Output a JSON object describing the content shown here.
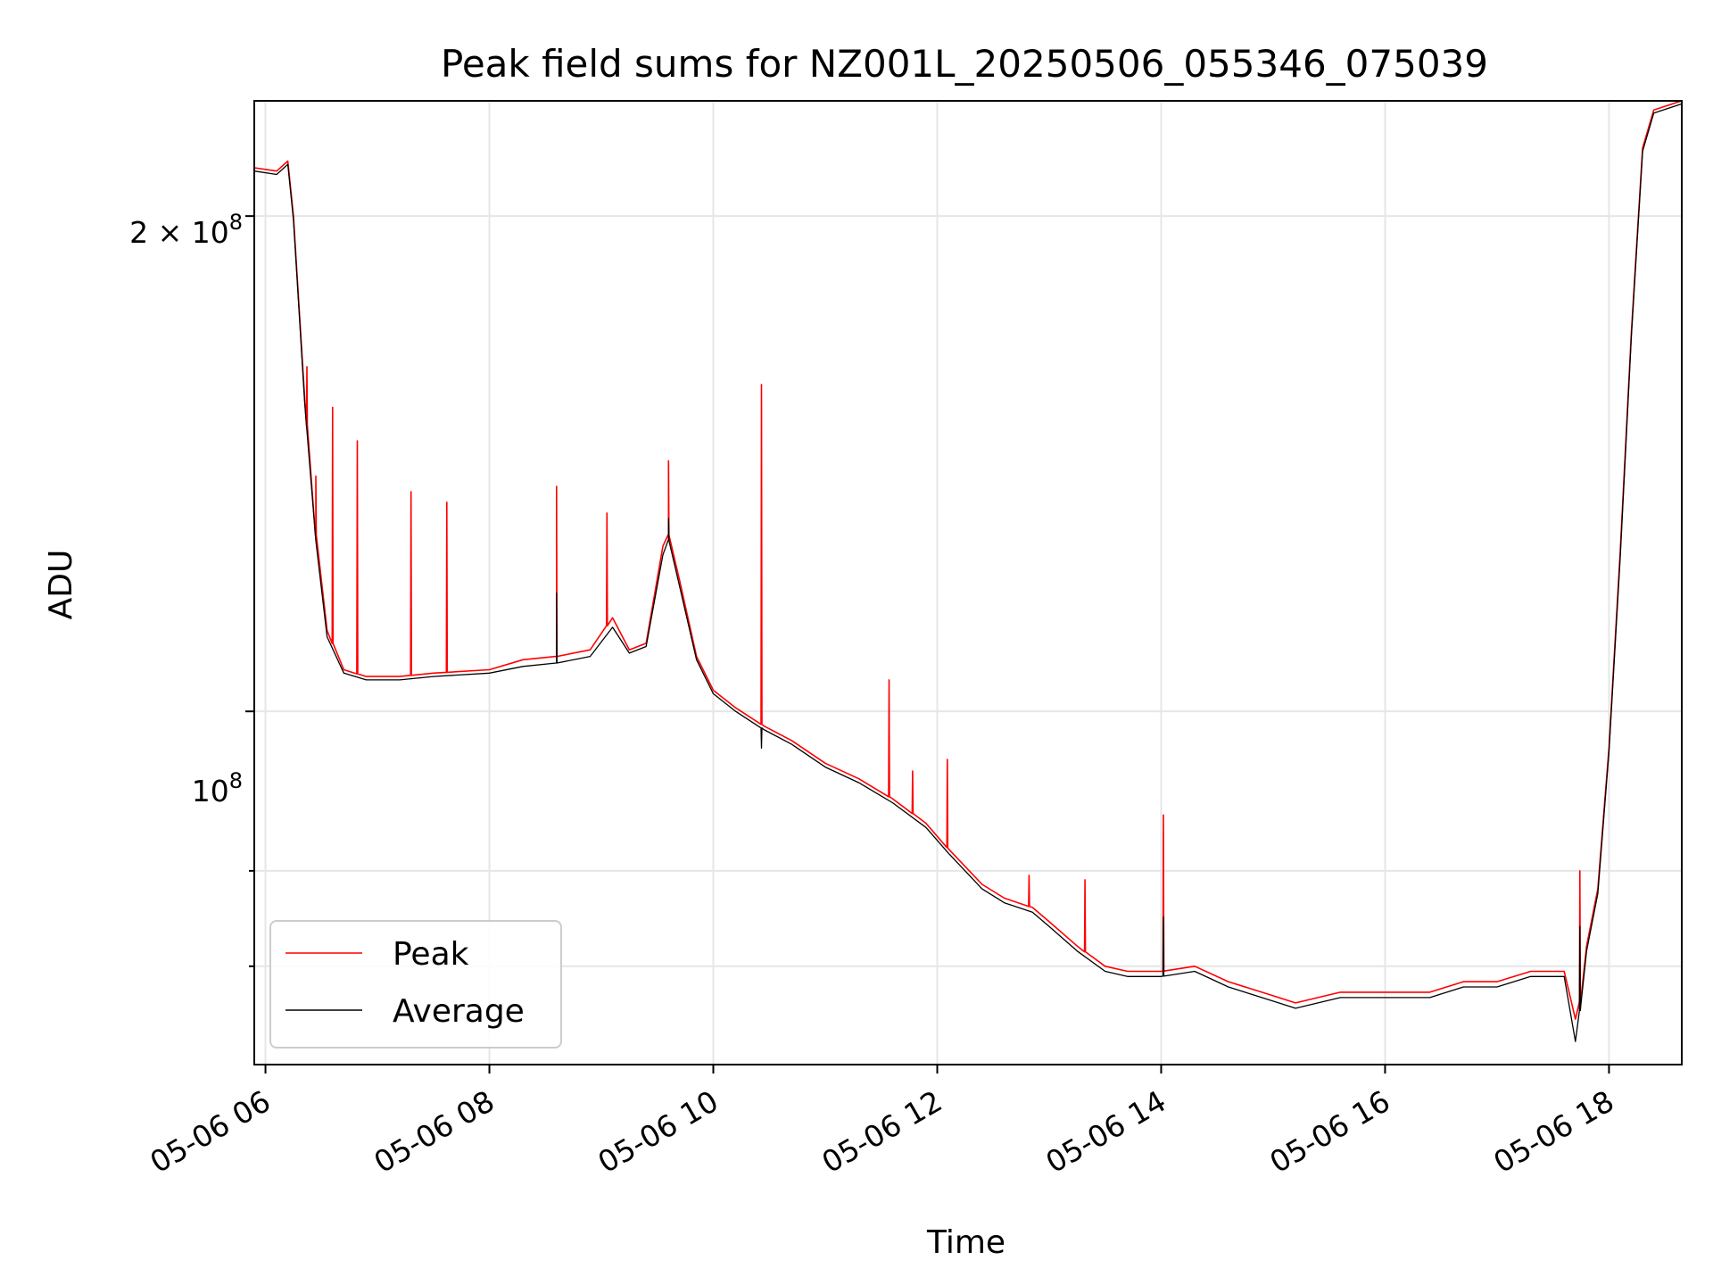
{
  "chart_data": {
    "type": "line",
    "title": "Peak field sums for NZ001L_20250506_055346_075039",
    "xlabel": "Time",
    "ylabel": "ADU",
    "yscale": "log",
    "grid": true,
    "legend_position": "lower-left",
    "x_tick_labels": [
      "05-06 06",
      "05-06 08",
      "05-06 10",
      "05-06 12",
      "05-06 14",
      "05-06 16",
      "05-06 18"
    ],
    "y_tick_labels": {
      "y_2e8": {
        "base": "2 × 10",
        "exp": "8"
      },
      "y_1e8": {
        "base": "10",
        "exp": "8"
      }
    },
    "xlim_hours": [
      5.9,
      18.65
    ],
    "ylim": [
      61000000,
      235000000
    ],
    "series": [
      {
        "name": "Peak",
        "color": "#ff0000",
        "points": [
          [
            5.9,
            214000000
          ],
          [
            6.1,
            213000000
          ],
          [
            6.2,
            216000000
          ],
          [
            6.25,
            200000000
          ],
          [
            6.35,
            155000000
          ],
          [
            6.45,
            128000000
          ],
          [
            6.55,
            112000000
          ],
          [
            6.7,
            106000000
          ],
          [
            6.9,
            105000000
          ],
          [
            7.2,
            105000000
          ],
          [
            7.5,
            105500000
          ],
          [
            8.0,
            106000000
          ],
          [
            8.3,
            107500000
          ],
          [
            8.6,
            108000000
          ],
          [
            8.9,
            109000000
          ],
          [
            9.1,
            114000000
          ],
          [
            9.25,
            109000000
          ],
          [
            9.4,
            110000000
          ],
          [
            9.55,
            126000000
          ],
          [
            9.6,
            128000000
          ],
          [
            9.7,
            120000000
          ],
          [
            9.85,
            108000000
          ],
          [
            10.0,
            103000000
          ],
          [
            10.2,
            100500000
          ],
          [
            10.45,
            98000000
          ],
          [
            10.7,
            96000000
          ],
          [
            11.0,
            93000000
          ],
          [
            11.3,
            91000000
          ],
          [
            11.6,
            88500000
          ],
          [
            11.9,
            85500000
          ],
          [
            12.1,
            82500000
          ],
          [
            12.4,
            78500000
          ],
          [
            12.6,
            77000000
          ],
          [
            12.85,
            76000000
          ],
          [
            13.0,
            74500000
          ],
          [
            13.25,
            72000000
          ],
          [
            13.5,
            70000000
          ],
          [
            13.7,
            69500000
          ],
          [
            14.0,
            69500000
          ],
          [
            14.3,
            70000000
          ],
          [
            14.6,
            68500000
          ],
          [
            14.9,
            67500000
          ],
          [
            15.2,
            66500000
          ],
          [
            15.6,
            67500000
          ],
          [
            16.0,
            67500000
          ],
          [
            16.4,
            67500000
          ],
          [
            16.7,
            68500000
          ],
          [
            17.0,
            68500000
          ],
          [
            17.3,
            69500000
          ],
          [
            17.6,
            69500000
          ],
          [
            17.7,
            65000000
          ],
          [
            17.75,
            67000000
          ],
          [
            17.8,
            72000000
          ],
          [
            17.9,
            78000000
          ],
          [
            18.0,
            95000000
          ],
          [
            18.1,
            125000000
          ],
          [
            18.2,
            170000000
          ],
          [
            18.3,
            220000000
          ],
          [
            18.4,
            232000000
          ],
          [
            18.65,
            235000000
          ]
        ],
        "spikes": [
          [
            6.37,
            162000000
          ],
          [
            6.45,
            139000000
          ],
          [
            6.6,
            153000000
          ],
          [
            6.82,
            146000000
          ],
          [
            7.3,
            136000000
          ],
          [
            7.62,
            134000000
          ],
          [
            8.6,
            137000000
          ],
          [
            9.05,
            132000000
          ],
          [
            9.6,
            142000000
          ],
          [
            10.43,
            158000000
          ],
          [
            11.57,
            104500000
          ],
          [
            11.78,
            92000000
          ],
          [
            12.09,
            93500000
          ],
          [
            12.82,
            79500000
          ],
          [
            13.32,
            79000000
          ],
          [
            14.02,
            86500000
          ],
          [
            17.74,
            80000000
          ]
        ]
      },
      {
        "name": "Average",
        "color": "#000000",
        "points": [
          [
            5.9,
            213000000
          ],
          [
            6.1,
            212000000
          ],
          [
            6.2,
            215000000
          ],
          [
            6.25,
            199000000
          ],
          [
            6.35,
            154000000
          ],
          [
            6.45,
            127000000
          ],
          [
            6.55,
            111000000
          ],
          [
            6.7,
            105500000
          ],
          [
            6.9,
            104500000
          ],
          [
            7.2,
            104500000
          ],
          [
            7.5,
            105000000
          ],
          [
            8.0,
            105500000
          ],
          [
            8.3,
            106500000
          ],
          [
            8.6,
            107000000
          ],
          [
            8.9,
            108000000
          ],
          [
            9.1,
            112500000
          ],
          [
            9.25,
            108500000
          ],
          [
            9.4,
            109500000
          ],
          [
            9.55,
            124500000
          ],
          [
            9.6,
            127000000
          ],
          [
            9.7,
            119000000
          ],
          [
            9.85,
            107500000
          ],
          [
            10.0,
            102500000
          ],
          [
            10.2,
            100000000
          ],
          [
            10.45,
            97500000
          ],
          [
            10.7,
            95500000
          ],
          [
            11.0,
            92500000
          ],
          [
            11.3,
            90500000
          ],
          [
            11.6,
            88000000
          ],
          [
            11.9,
            85000000
          ],
          [
            12.1,
            82000000
          ],
          [
            12.4,
            78000000
          ],
          [
            12.6,
            76500000
          ],
          [
            12.85,
            75500000
          ],
          [
            13.0,
            74000000
          ],
          [
            13.25,
            71500000
          ],
          [
            13.5,
            69500000
          ],
          [
            13.7,
            69000000
          ],
          [
            14.0,
            69000000
          ],
          [
            14.3,
            69500000
          ],
          [
            14.6,
            68000000
          ],
          [
            14.9,
            67000000
          ],
          [
            15.2,
            66000000
          ],
          [
            15.6,
            67000000
          ],
          [
            16.0,
            67000000
          ],
          [
            16.4,
            67000000
          ],
          [
            16.7,
            68000000
          ],
          [
            17.0,
            68000000
          ],
          [
            17.3,
            69000000
          ],
          [
            17.6,
            69000000
          ],
          [
            17.7,
            63000000
          ],
          [
            17.75,
            66500000
          ],
          [
            17.8,
            71500000
          ],
          [
            17.9,
            77500000
          ],
          [
            18.0,
            94500000
          ],
          [
            18.1,
            124000000
          ],
          [
            18.2,
            169000000
          ],
          [
            18.3,
            219000000
          ],
          [
            18.4,
            231000000
          ],
          [
            18.65,
            234000000
          ]
        ],
        "spikes": [
          [
            8.6,
            118000000
          ],
          [
            9.6,
            131000000
          ],
          [
            10.43,
            95000000
          ],
          [
            14.02,
            75000000
          ],
          [
            17.74,
            74000000
          ]
        ]
      }
    ]
  }
}
